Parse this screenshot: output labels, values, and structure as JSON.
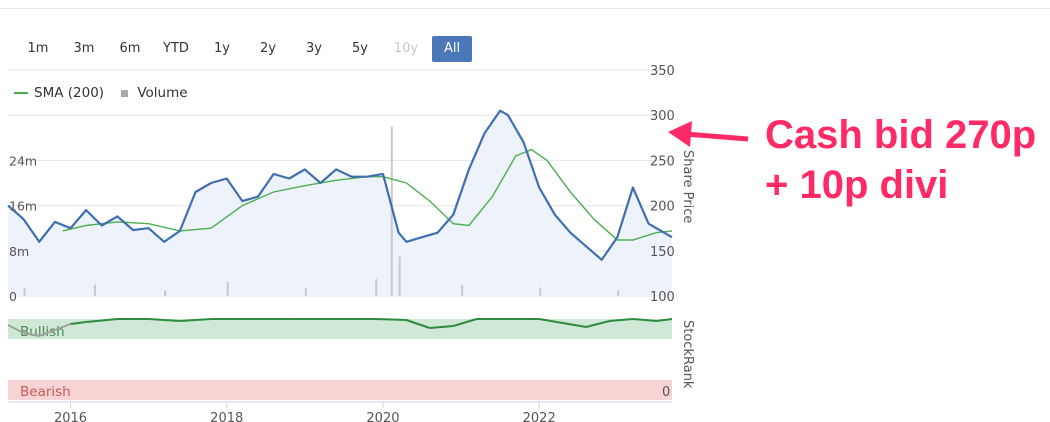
{
  "range_selector": {
    "buttons": [
      {
        "label": "1m",
        "state": "normal"
      },
      {
        "label": "3m",
        "state": "normal"
      },
      {
        "label": "6m",
        "state": "normal"
      },
      {
        "label": "YTD",
        "state": "normal"
      },
      {
        "label": "1y",
        "state": "normal"
      },
      {
        "label": "2y",
        "state": "normal"
      },
      {
        "label": "3y",
        "state": "normal"
      },
      {
        "label": "5y",
        "state": "normal"
      },
      {
        "label": "10y",
        "state": "disabled"
      },
      {
        "label": "All",
        "state": "active"
      }
    ]
  },
  "legend": {
    "sma_label": "SMA (200)",
    "volume_label": "Volume"
  },
  "annotation": {
    "line1": "Cash bid 270p",
    "line2": "+ 10p divi",
    "color": "#ff2a66"
  },
  "colors": {
    "price": "#3e6fb0",
    "sma": "#4caf50",
    "volume": "#c9c9c9",
    "price_fill": "#eef2fa",
    "bullish_band": "#cfe9d6",
    "bearish_band": "#f6d4d4",
    "stockrank_line": "#2e8b3e",
    "stockrank_low": "#a0a0a0"
  },
  "chart_data": {
    "type": "line",
    "x_axis": {
      "ticks": [
        "2016",
        "2018",
        "2020",
        "2022"
      ],
      "range": [
        2015.2,
        2023.7
      ]
    },
    "price_axis": {
      "label": "Share Price",
      "ticks": [
        100,
        150,
        200,
        250,
        300,
        350
      ],
      "range": [
        100,
        350
      ]
    },
    "volume_axis": {
      "ticks": [
        "0",
        "8m",
        "16m",
        "24m"
      ],
      "values": [
        0,
        8,
        16,
        24
      ],
      "range": [
        0,
        40
      ]
    },
    "stockrank_panel": {
      "label": "StockRank",
      "bullish_label": "Bullish",
      "bearish_label": "Bearish",
      "zero_label": "0",
      "range": [
        0,
        100
      ],
      "series": {
        "x": [
          2015.2,
          2015.4,
          2015.6,
          2015.8,
          2016.0,
          2016.2,
          2016.6,
          2017.0,
          2017.4,
          2017.8,
          2018.2,
          2018.8,
          2019.4,
          2019.9,
          2020.3,
          2020.6,
          2020.9,
          2021.2,
          2021.6,
          2022.0,
          2022.3,
          2022.6,
          2022.9,
          2023.2,
          2023.5,
          2023.7
        ],
        "values": [
          88,
          72,
          66,
          78,
          90,
          94,
          100,
          100,
          96,
          100,
          100,
          100,
          100,
          100,
          98,
          82,
          86,
          100,
          100,
          100,
          92,
          84,
          96,
          100,
          96,
          100
        ]
      }
    },
    "series": [
      {
        "name": "Share Price",
        "x": [
          2015.2,
          2015.4,
          2015.6,
          2015.8,
          2016.0,
          2016.2,
          2016.4,
          2016.6,
          2016.8,
          2017.0,
          2017.2,
          2017.4,
          2017.6,
          2017.8,
          2018.0,
          2018.2,
          2018.4,
          2018.6,
          2018.8,
          2019.0,
          2019.2,
          2019.4,
          2019.6,
          2019.8,
          2020.0,
          2020.2,
          2020.3,
          2020.5,
          2020.7,
          2020.9,
          2021.1,
          2021.3,
          2021.5,
          2021.6,
          2021.8,
          2022.0,
          2022.2,
          2022.4,
          2022.6,
          2022.8,
          2023.0,
          2023.2,
          2023.4,
          2023.6,
          2023.7
        ],
        "values": [
          200,
          185,
          160,
          182,
          175,
          195,
          178,
          188,
          173,
          175,
          160,
          172,
          215,
          225,
          230,
          205,
          210,
          235,
          230,
          240,
          225,
          240,
          232,
          232,
          235,
          170,
          160,
          165,
          170,
          190,
          240,
          280,
          305,
          300,
          270,
          220,
          190,
          170,
          155,
          140,
          165,
          220,
          180,
          170,
          165
        ]
      },
      {
        "name": "SMA (200)",
        "x": [
          2015.9,
          2016.2,
          2016.6,
          2017.0,
          2017.4,
          2017.8,
          2018.2,
          2018.6,
          2019.0,
          2019.4,
          2019.8,
          2020.0,
          2020.3,
          2020.6,
          2020.9,
          2021.1,
          2021.4,
          2021.7,
          2021.9,
          2022.1,
          2022.4,
          2022.7,
          2023.0,
          2023.2,
          2023.5,
          2023.7
        ],
        "values": [
          172,
          178,
          182,
          180,
          172,
          175,
          200,
          215,
          222,
          228,
          232,
          232,
          225,
          205,
          180,
          178,
          210,
          255,
          262,
          250,
          215,
          185,
          162,
          162,
          170,
          172
        ]
      },
      {
        "name": "Volume",
        "x": [
          2015.4,
          2016.3,
          2017.2,
          2018.0,
          2019.0,
          2019.9,
          2020.1,
          2020.2,
          2021.0,
          2022.0,
          2023.0
        ],
        "values": [
          1.5,
          2,
          1,
          2.5,
          1.5,
          3,
          30,
          7,
          2,
          1.5,
          1
        ]
      }
    ]
  }
}
